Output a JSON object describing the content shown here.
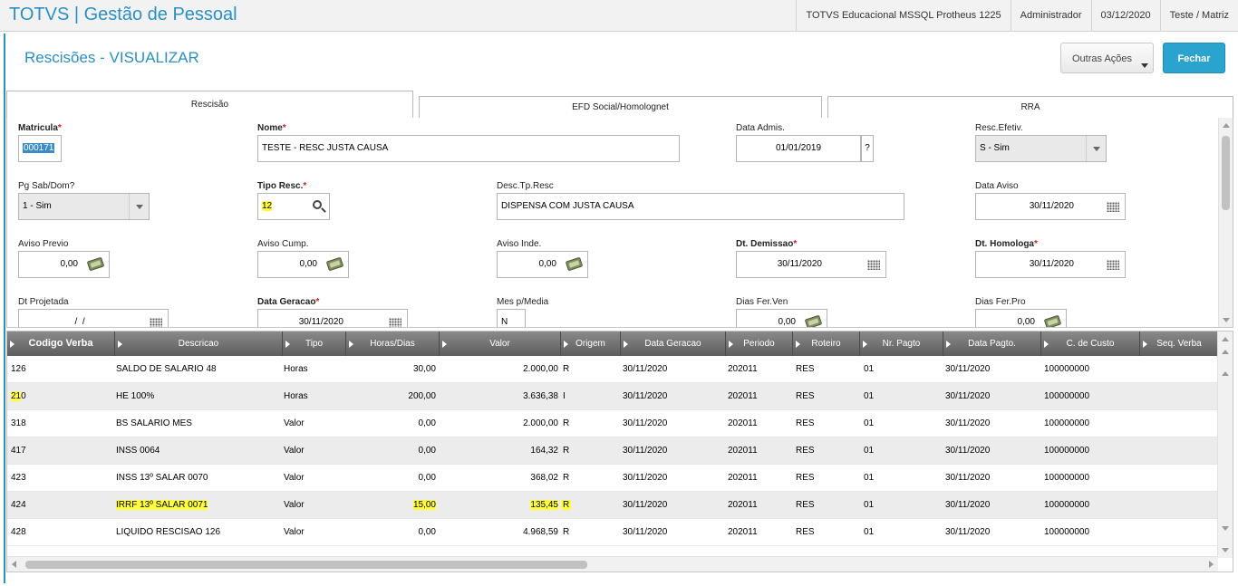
{
  "app": {
    "title": "TOTVS | Gestão de Pessoal"
  },
  "topbar": {
    "system": "TOTVS Educacional MSSQL Protheus 1225",
    "user": "Administrador",
    "date": "03/12/2020",
    "branch": "Teste / Matriz"
  },
  "page": {
    "title": "Rescisões - VISUALIZAR"
  },
  "actions": {
    "outras_label": "Outras Ações",
    "fechar_label": "Fechar"
  },
  "tabs": [
    {
      "label": "Rescisão",
      "active": true
    },
    {
      "label": "EFD Social/Homolognet",
      "active": false
    },
    {
      "label": "RRA",
      "active": false
    }
  ],
  "form": {
    "matricula": {
      "label": "Matricula",
      "required": "*",
      "value": "000171"
    },
    "nome": {
      "label": "Nome",
      "required": "*",
      "value": "TESTE - RESC JUSTA CAUSA"
    },
    "data_admis": {
      "label": "Data Admis.",
      "value": "01/01/2019",
      "help": "?"
    },
    "resc_efetiv": {
      "label": "Resc.Efetiv.",
      "value": "S - Sim"
    },
    "pg_sab_dom": {
      "label": "Pg Sab/Dom?",
      "value": "1 - Sim"
    },
    "tipo_resc": {
      "label": "Tipo Resc.",
      "required": "*",
      "value": "12"
    },
    "desc_tp_resc": {
      "label": "Desc.Tp.Resc",
      "value": "DISPENSA COM JUSTA CAUSA"
    },
    "data_aviso": {
      "label": "Data Aviso",
      "value": "30/11/2020"
    },
    "aviso_previo": {
      "label": "Aviso Previo",
      "value": "0,00"
    },
    "aviso_cump": {
      "label": "Aviso Cump.",
      "value": "0,00"
    },
    "aviso_inde": {
      "label": "Aviso Inde.",
      "value": "0,00"
    },
    "dt_demissao": {
      "label": "Dt. Demissao",
      "required": "*",
      "value": "30/11/2020"
    },
    "dt_homologa": {
      "label": "Dt. Homologa",
      "required": "*",
      "value": "30/11/2020"
    },
    "dt_projetada": {
      "label": "Dt Projetada",
      "value": "  /  /"
    },
    "data_geracao": {
      "label": "Data Geracao",
      "required": "*",
      "value": "30/11/2020"
    },
    "mes_media": {
      "label": "Mes p/Media",
      "value": "N"
    },
    "dias_fer_ven": {
      "label": "Dias Fer.Ven",
      "value": "0,00"
    },
    "dias_fer_pro": {
      "label": "Dias Fer.Pro",
      "value": "0,00"
    }
  },
  "grid": {
    "columns": [
      "Codigo Verba",
      "Descricao",
      "Tipo",
      "Horas/Dias",
      "Valor",
      "Origem",
      "Data Geracao",
      "Periodo",
      "Roteiro",
      "Nr. Pagto",
      "Data Pagto.",
      "C. de Custo",
      "Seq. Verba"
    ],
    "rows": [
      {
        "codigo": "126",
        "descricao": "SALDO DE SALARIO 48",
        "tipo": "Horas",
        "horas": "30,00",
        "valor": "2.000,00",
        "origem": "R",
        "data_geracao": "30/11/2020",
        "periodo": "202011",
        "roteiro": "RES",
        "nr_pagto": "01",
        "data_pagto": "30/11/2020",
        "custo": "100000000"
      },
      {
        "codigo_hl": "21",
        "codigo_rest": "0",
        "descricao": "HE 100%",
        "tipo": "Horas",
        "horas": "200,00",
        "valor": "3.636,38",
        "origem": "I",
        "data_geracao": "30/11/2020",
        "periodo": "202011",
        "roteiro": "RES",
        "nr_pagto": "01",
        "data_pagto": "30/11/2020",
        "custo": "100000000"
      },
      {
        "codigo": "318",
        "descricao": "BS SALARIO MES",
        "tipo": "Valor",
        "horas": "0,00",
        "valor": "2.000,00",
        "origem": "R",
        "data_geracao": "30/11/2020",
        "periodo": "202011",
        "roteiro": "RES",
        "nr_pagto": "01",
        "data_pagto": "30/11/2020",
        "custo": "100000000"
      },
      {
        "codigo": "417",
        "descricao": "INSS 0064",
        "tipo": "Valor",
        "horas": "0,00",
        "valor": "164,32",
        "origem": "R",
        "data_geracao": "30/11/2020",
        "periodo": "202011",
        "roteiro": "RES",
        "nr_pagto": "01",
        "data_pagto": "30/11/2020",
        "custo": "100000000"
      },
      {
        "codigo": "423",
        "descricao": "INSS 13º SALAR 0070",
        "tipo": "Valor",
        "horas": "0,00",
        "valor": "368,02",
        "origem": "R",
        "data_geracao": "30/11/2020",
        "periodo": "202011",
        "roteiro": "RES",
        "nr_pagto": "01",
        "data_pagto": "30/11/2020",
        "custo": "100000000"
      },
      {
        "codigo": "424",
        "descricao": "IRRF 13º SALAR 0071",
        "tipo": "Valor",
        "horas": "15,00",
        "valor": "135,45",
        "origem": "R",
        "data_geracao": "30/11/2020",
        "periodo": "202011",
        "roteiro": "RES",
        "nr_pagto": "01",
        "data_pagto": "30/11/2020",
        "custo": "100000000"
      },
      {
        "codigo": "428",
        "descricao": "LIQUIDO RESCISAO 126",
        "tipo": "Valor",
        "horas": "0,00",
        "valor": "4.968,59",
        "origem": "R",
        "data_geracao": "30/11/2020",
        "periodo": "202011",
        "roteiro": "RES",
        "nr_pagto": "01",
        "data_pagto": "30/11/2020",
        "custo": "100000000"
      }
    ]
  }
}
